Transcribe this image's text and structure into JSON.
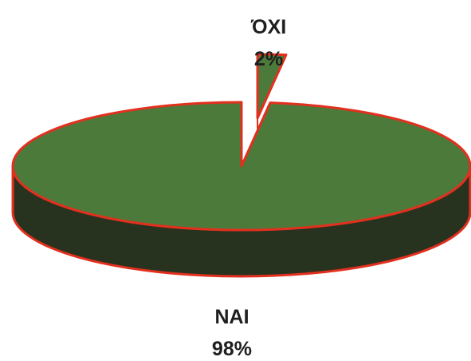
{
  "chart_data": {
    "type": "pie",
    "slices": [
      {
        "name": "ΌΧΙ",
        "value": 2,
        "label": "2%"
      },
      {
        "name": "NAI",
        "value": 98,
        "label": "98%"
      }
    ],
    "colors": {
      "top": "#4c7a3a",
      "side": "#27321f",
      "outline": "#e2301f"
    },
    "style": "3d-exploded"
  }
}
